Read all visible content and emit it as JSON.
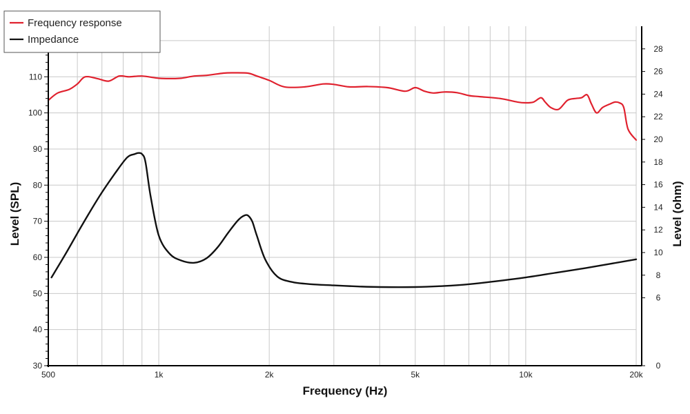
{
  "chart_data": {
    "type": "line",
    "xlabel": "Frequency (Hz)",
    "ylabel_left": "Level (SPL)",
    "ylabel_right": "Level (ohm)",
    "x_scale": "log",
    "xlim": [
      500,
      20000
    ],
    "ylim_left": [
      30,
      124
    ],
    "ylim_right": [
      0,
      30
    ],
    "grid": true,
    "legend_position": "top-left",
    "colors": {
      "frequency_response": "#e0212e",
      "impedance": "#111111",
      "grid": "#c8c8c8",
      "axis": "#000000"
    },
    "x_ticks": [
      {
        "value": 500,
        "label": "500"
      },
      {
        "value": 1000,
        "label": "1k"
      },
      {
        "value": 2000,
        "label": "2k"
      },
      {
        "value": 5000,
        "label": "5k"
      },
      {
        "value": 10000,
        "label": "10k"
      },
      {
        "value": 20000,
        "label": "20k"
      }
    ],
    "x_gridlines": [
      500,
      600,
      700,
      800,
      900,
      1000,
      2000,
      3000,
      4000,
      5000,
      6000,
      7000,
      8000,
      9000,
      10000,
      20000
    ],
    "y_left_ticks": [
      {
        "value": 30,
        "label": "30"
      },
      {
        "value": 40,
        "label": "40"
      },
      {
        "value": 50,
        "label": "50"
      },
      {
        "value": 60,
        "label": "60"
      },
      {
        "value": 70,
        "label": "70"
      },
      {
        "value": 80,
        "label": "80"
      },
      {
        "value": 90,
        "label": "90"
      },
      {
        "value": 100,
        "label": "100"
      },
      {
        "value": 110,
        "label": "110"
      },
      {
        "value": 120,
        "label": "120"
      }
    ],
    "y_left_minor_step": 2,
    "y_right_ticks": [
      {
        "value": 0,
        "label": "0"
      },
      {
        "value": 6,
        "label": "6"
      },
      {
        "value": 8,
        "label": "8"
      },
      {
        "value": 10,
        "label": "10"
      },
      {
        "value": 12,
        "label": "12"
      },
      {
        "value": 14,
        "label": "14"
      },
      {
        "value": 16,
        "label": "16"
      },
      {
        "value": 18,
        "label": "18"
      },
      {
        "value": 20,
        "label": "20"
      },
      {
        "value": 22,
        "label": "22"
      },
      {
        "value": 24,
        "label": "24"
      },
      {
        "value": 26,
        "label": "26"
      },
      {
        "value": 28,
        "label": "28"
      }
    ],
    "series": [
      {
        "name": "Frequency response",
        "axis": "left",
        "x": [
          500,
          530,
          570,
          600,
          630,
          680,
          730,
          780,
          830,
          900,
          1000,
          1080,
          1150,
          1250,
          1350,
          1500,
          1600,
          1750,
          1850,
          2000,
          2200,
          2500,
          2800,
          3000,
          3300,
          3700,
          4200,
          4700,
          5000,
          5300,
          5600,
          6000,
          6500,
          7000,
          7500,
          8500,
          9500,
          10000,
          10500,
          11000,
          11300,
          11700,
          12300,
          13000,
          13700,
          14200,
          14700,
          15100,
          15600,
          16200,
          17000,
          17500,
          18000,
          18500,
          19000,
          20000
        ],
        "values": [
          103.5,
          105.5,
          106.5,
          108.0,
          110.0,
          109.5,
          108.8,
          110.2,
          110.0,
          110.2,
          109.6,
          109.5,
          109.6,
          110.2,
          110.4,
          111.0,
          111.1,
          111.0,
          110.2,
          109.0,
          107.2,
          107.2,
          108.0,
          107.9,
          107.2,
          107.3,
          107.0,
          106.0,
          107.0,
          106.0,
          105.5,
          105.8,
          105.6,
          104.8,
          104.5,
          104.0,
          103.0,
          102.8,
          103.0,
          104.2,
          103.0,
          101.5,
          101.0,
          103.5,
          104.0,
          104.2,
          105.0,
          102.5,
          100.0,
          101.5,
          102.5,
          103.0,
          102.8,
          101.5,
          95.5,
          92.5
        ]
      },
      {
        "name": "Impedance",
        "axis": "right",
        "x": [
          510,
          560,
          620,
          690,
          760,
          820,
          860,
          880,
          900,
          920,
          950,
          1000,
          1070,
          1150,
          1250,
          1350,
          1450,
          1550,
          1650,
          1720,
          1760,
          1800,
          1850,
          1950,
          2100,
          2300,
          2600,
          3000,
          3500,
          4000,
          5000,
          6000,
          7000,
          8000,
          10000,
          12000,
          15000,
          20000
        ],
        "values": [
          7.8,
          10.0,
          12.5,
          15.0,
          17.0,
          18.4,
          18.7,
          18.8,
          18.7,
          18.0,
          15.0,
          11.5,
          9.9,
          9.3,
          9.1,
          9.5,
          10.5,
          11.8,
          12.9,
          13.3,
          13.2,
          12.7,
          11.5,
          9.4,
          7.9,
          7.4,
          7.2,
          7.1,
          7.0,
          6.95,
          6.95,
          7.05,
          7.2,
          7.4,
          7.8,
          8.2,
          8.7,
          9.4
        ]
      }
    ]
  }
}
